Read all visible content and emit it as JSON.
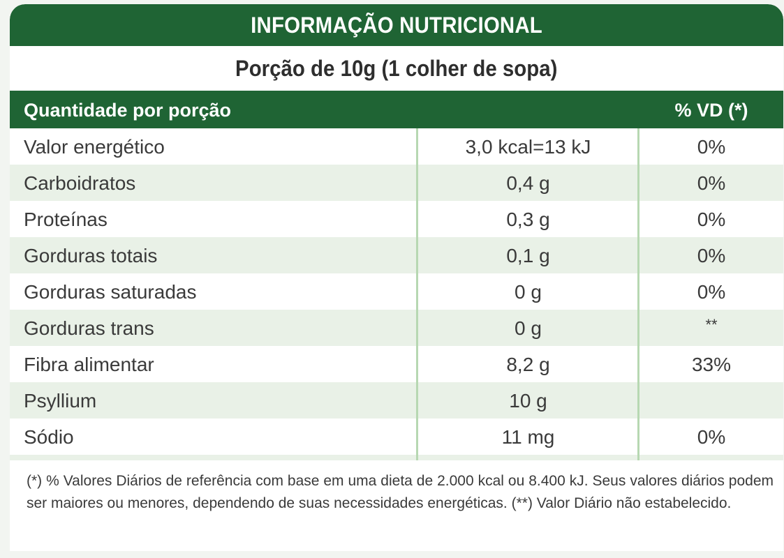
{
  "title": "INFORMAÇÃO NUTRICIONAL",
  "portion": "Porção de 10g (1 colher de sopa)",
  "header": {
    "quantity": "Quantidade por porção",
    "vd": "% VD (*)"
  },
  "rows": [
    {
      "name": "Valor energético",
      "amount": "3,0 kcal=13 kJ",
      "vd": "0%"
    },
    {
      "name": "Carboidratos",
      "amount": "0,4 g",
      "vd": "0%"
    },
    {
      "name": "Proteínas",
      "amount": "0,3 g",
      "vd": "0%"
    },
    {
      "name": "Gorduras totais",
      "amount": "0,1 g",
      "vd": "0%"
    },
    {
      "name": "Gorduras saturadas",
      "amount": "0 g",
      "vd": "0%"
    },
    {
      "name": "Gorduras trans",
      "amount": "0 g",
      "vd": "**"
    },
    {
      "name": "Fibra alimentar",
      "amount": "8,2 g",
      "vd": "33%"
    },
    {
      "name": "Psyllium",
      "amount": "10 g",
      "vd": ""
    },
    {
      "name": "Sódio",
      "amount": "11 mg",
      "vd": "0%"
    }
  ],
  "footnote": "(*) % Valores Diários de referência com base em uma dieta de 2.000 kcal ou 8.400 kJ. Seus valores diários podem ser maiores ou menores, dependendo de suas necessidades energéticas. (**) Valor Diário não estabelecido.",
  "colors": {
    "header_green": "#1f6434",
    "row_alt": "#e9f1e7",
    "divider": "#b7d8b2"
  }
}
